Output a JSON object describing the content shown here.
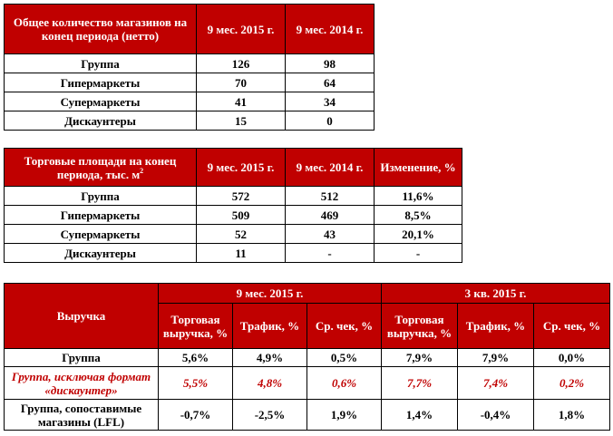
{
  "table1": {
    "headers": [
      "Общее количество магазинов на конец периода (нетто)",
      "9 мес. 2015 г.",
      "9 мес. 2014 г."
    ],
    "rows": [
      [
        "Группа",
        "126",
        "98"
      ],
      [
        "Гипермаркеты",
        "70",
        "64"
      ],
      [
        "Супермаркеты",
        "41",
        "34"
      ],
      [
        "Дискаунтеры",
        "15",
        "0"
      ]
    ]
  },
  "table2": {
    "headers": [
      "Торговые площади на конец периода, тыс. м",
      "9 мес. 2015 г.",
      "9 мес. 2014 г.",
      "Изменение, %"
    ],
    "header_sup": "2",
    "rows": [
      [
        "Группа",
        "572",
        "512",
        "11,6%"
      ],
      [
        "Гипермаркеты",
        "509",
        "469",
        "8,5%"
      ],
      [
        "Супермаркеты",
        "52",
        "43",
        "20,1%"
      ],
      [
        "Дискаунтеры",
        "11",
        "-",
        "-"
      ]
    ]
  },
  "table3": {
    "title": "Выручка",
    "groups": [
      "9 мес. 2015 г.",
      "3 кв. 2015 г."
    ],
    "subheaders": [
      "Торговая выручка, %",
      "Трафик, %",
      "Ср. чек, %",
      "Торговая выручка, %",
      "Трафик, %",
      "Ср. чек, %"
    ],
    "rows": [
      [
        "Группа",
        "5,6%",
        "4,9%",
        "0,5%",
        "7,9%",
        "7,9%",
        "0,0%"
      ],
      [
        "Группа, исключая формат «дискаунтер»",
        "5,5%",
        "4,8%",
        "0,6%",
        "7,7%",
        "7,4%",
        "0,2%"
      ],
      [
        "Группа, сопоставимые магазины (LFL)",
        "-0,7%",
        "-2,5%",
        "1,9%",
        "1,4%",
        "-0,4%",
        "1,8%"
      ]
    ]
  }
}
